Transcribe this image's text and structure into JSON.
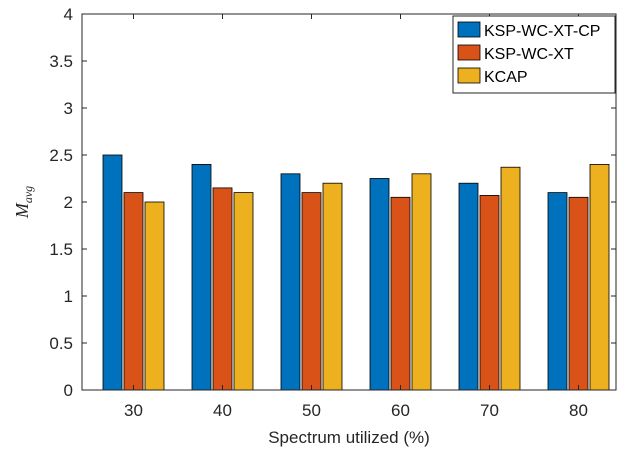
{
  "chart_data": {
    "type": "bar",
    "categories": [
      "30",
      "40",
      "50",
      "60",
      "70",
      "80"
    ],
    "series": [
      {
        "name": "KSP-WC-XT-CP",
        "color": "#0072BD",
        "values": [
          2.5,
          2.4,
          2.3,
          2.25,
          2.2,
          2.1
        ]
      },
      {
        "name": "KSP-WC-XT",
        "color": "#D95319",
        "values": [
          2.1,
          2.15,
          2.1,
          2.05,
          2.07,
          2.05
        ]
      },
      {
        "name": "KCAP",
        "color": "#EDB120",
        "values": [
          2.0,
          2.1,
          2.2,
          2.3,
          2.37,
          2.4
        ]
      }
    ],
    "xlabel": "Spectrum utilized (%)",
    "ylabel_main": "M",
    "ylabel_sub": "avg",
    "ylim": [
      0,
      4
    ],
    "yticks": [
      "0",
      "0.5",
      "1",
      "1.5",
      "2",
      "2.5",
      "3",
      "3.5",
      "4"
    ],
    "grid": false,
    "legend_position": "top-right"
  }
}
